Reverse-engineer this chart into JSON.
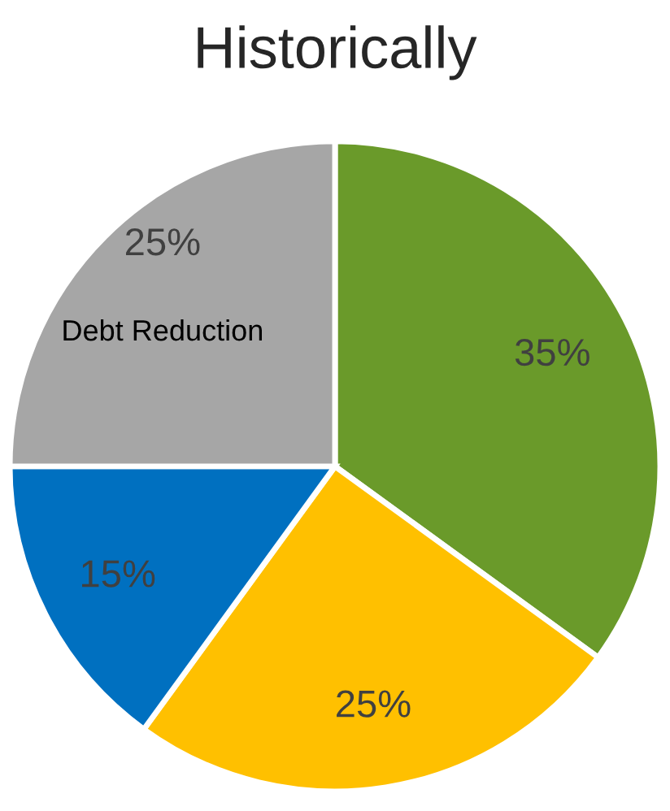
{
  "chart_data": {
    "type": "pie",
    "title": "Historically",
    "categories": [
      null,
      null,
      null,
      "Debt Reduction"
    ],
    "values": [
      35,
      25,
      15,
      25
    ],
    "colors": [
      "#6a9a2a",
      "#ffc000",
      "#0070c0",
      "#a6a6a6"
    ],
    "value_labels": [
      "35%",
      "25%",
      "15%",
      "25%"
    ]
  }
}
